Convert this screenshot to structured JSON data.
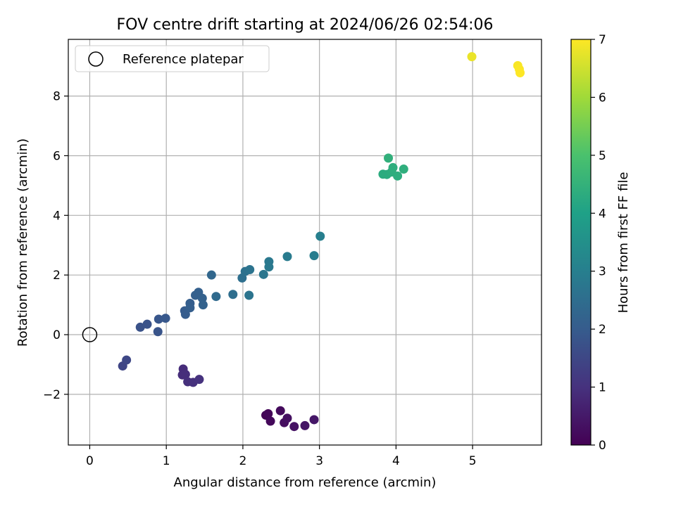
{
  "chart_data": {
    "type": "scatter",
    "title": "FOV centre drift starting at 2024/06/26 02:54:06",
    "xlabel": "Angular distance from reference (arcmin)",
    "ylabel": "Rotation from reference (arcmin)",
    "xlim": [
      -0.28,
      5.9
    ],
    "ylim": [
      -3.7,
      9.9
    ],
    "xticks": [
      0,
      1,
      2,
      3,
      4,
      5
    ],
    "yticks": [
      -2,
      0,
      2,
      4,
      6,
      8
    ],
    "grid": true,
    "legend": {
      "placement": "upper-left",
      "entries": [
        "Reference platepar"
      ]
    },
    "reference_point": {
      "x": 0,
      "y": 0,
      "label": "Reference platepar"
    },
    "colorbar": {
      "label": "Hours from first FF file",
      "range": [
        0,
        7
      ],
      "ticks": [
        0,
        1,
        2,
        3,
        4,
        5,
        6,
        7
      ],
      "colormap": "viridis",
      "colors": [
        "#440154",
        "#46327e",
        "#365c8d",
        "#277f8e",
        "#1fa187",
        "#4ac16d",
        "#a0da39",
        "#fde725"
      ]
    },
    "points": [
      {
        "x": 2.3,
        "y": -2.7,
        "t": 0.05
      },
      {
        "x": 2.33,
        "y": -2.65,
        "t": 0.1
      },
      {
        "x": 2.36,
        "y": -2.9,
        "t": 0.15
      },
      {
        "x": 2.49,
        "y": -2.55,
        "t": 0.2
      },
      {
        "x": 2.54,
        "y": -2.95,
        "t": 0.25
      },
      {
        "x": 2.58,
        "y": -2.8,
        "t": 0.3
      },
      {
        "x": 2.67,
        "y": -3.08,
        "t": 0.35
      },
      {
        "x": 2.81,
        "y": -3.05,
        "t": 0.4
      },
      {
        "x": 2.93,
        "y": -2.85,
        "t": 0.45
      },
      {
        "x": 1.22,
        "y": -1.15,
        "t": 0.9
      },
      {
        "x": 1.21,
        "y": -1.35,
        "t": 0.92
      },
      {
        "x": 1.25,
        "y": -1.33,
        "t": 0.94
      },
      {
        "x": 1.28,
        "y": -1.58,
        "t": 0.96
      },
      {
        "x": 1.35,
        "y": -1.6,
        "t": 0.98
      },
      {
        "x": 1.43,
        "y": -1.5,
        "t": 1.0
      },
      {
        "x": 0.43,
        "y": -1.05,
        "t": 1.45
      },
      {
        "x": 0.48,
        "y": -0.85,
        "t": 1.5
      },
      {
        "x": 0.66,
        "y": 0.25,
        "t": 1.75
      },
      {
        "x": 0.75,
        "y": 0.35,
        "t": 1.78
      },
      {
        "x": 0.89,
        "y": 0.1,
        "t": 1.82
      },
      {
        "x": 0.9,
        "y": 0.52,
        "t": 1.86
      },
      {
        "x": 0.99,
        "y": 0.55,
        "t": 1.9
      },
      {
        "x": 1.24,
        "y": 0.8,
        "t": 2.0
      },
      {
        "x": 1.25,
        "y": 0.68,
        "t": 2.02
      },
      {
        "x": 1.31,
        "y": 1.05,
        "t": 2.05
      },
      {
        "x": 1.31,
        "y": 0.9,
        "t": 2.08
      },
      {
        "x": 1.38,
        "y": 1.32,
        "t": 2.1
      },
      {
        "x": 1.42,
        "y": 1.42,
        "t": 2.12
      },
      {
        "x": 1.47,
        "y": 1.22,
        "t": 2.15
      },
      {
        "x": 1.48,
        "y": 1.0,
        "t": 2.18
      },
      {
        "x": 1.59,
        "y": 2.0,
        "t": 2.3
      },
      {
        "x": 1.65,
        "y": 1.28,
        "t": 2.4
      },
      {
        "x": 1.87,
        "y": 1.35,
        "t": 2.5
      },
      {
        "x": 1.99,
        "y": 1.9,
        "t": 2.55
      },
      {
        "x": 2.03,
        "y": 2.12,
        "t": 2.6
      },
      {
        "x": 2.09,
        "y": 2.18,
        "t": 2.65
      },
      {
        "x": 2.08,
        "y": 1.32,
        "t": 2.68
      },
      {
        "x": 2.27,
        "y": 2.02,
        "t": 2.75
      },
      {
        "x": 2.34,
        "y": 2.45,
        "t": 2.8
      },
      {
        "x": 2.34,
        "y": 2.27,
        "t": 2.82
      },
      {
        "x": 2.58,
        "y": 2.62,
        "t": 2.88
      },
      {
        "x": 2.93,
        "y": 2.65,
        "t": 2.95
      },
      {
        "x": 3.01,
        "y": 3.3,
        "t": 3.0
      },
      {
        "x": 3.83,
        "y": 5.38,
        "t": 4.3
      },
      {
        "x": 3.88,
        "y": 5.37,
        "t": 4.32
      },
      {
        "x": 3.9,
        "y": 5.92,
        "t": 4.45
      },
      {
        "x": 3.94,
        "y": 5.45,
        "t": 4.35
      },
      {
        "x": 3.96,
        "y": 5.6,
        "t": 4.38
      },
      {
        "x": 4.02,
        "y": 5.32,
        "t": 4.36
      },
      {
        "x": 4.1,
        "y": 5.55,
        "t": 4.4
      },
      {
        "x": 4.99,
        "y": 9.32,
        "t": 6.8
      },
      {
        "x": 5.59,
        "y": 9.02,
        "t": 6.95
      },
      {
        "x": 5.61,
        "y": 8.9,
        "t": 6.97
      },
      {
        "x": 5.62,
        "y": 8.78,
        "t": 7.0
      }
    ]
  }
}
